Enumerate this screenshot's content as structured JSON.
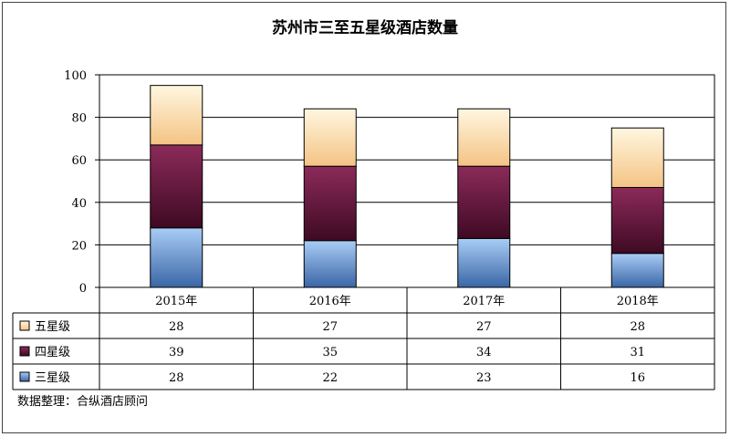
{
  "chart_data": {
    "type": "bar",
    "stacked": true,
    "title": "苏州市三至五星级酒店数量",
    "categories": [
      "2015年",
      "2016年",
      "2017年",
      "2018年"
    ],
    "ylim": [
      0,
      100
    ],
    "yticks": [
      "0",
      "20",
      "40",
      "60",
      "80",
      "100"
    ],
    "grid": true,
    "legend_placement": "data-table-left",
    "series": [
      {
        "name": "五星级",
        "values": [
          28,
          27,
          27,
          28
        ],
        "color": "#fff2cc"
      },
      {
        "name": "四星级",
        "values": [
          39,
          35,
          34,
          31
        ],
        "color": "#7b1c48"
      },
      {
        "name": "三星级",
        "values": [
          28,
          22,
          23,
          16
        ],
        "color": "#8cb6ea"
      }
    ]
  },
  "footnote": "数据整理：合纵酒店顾问"
}
